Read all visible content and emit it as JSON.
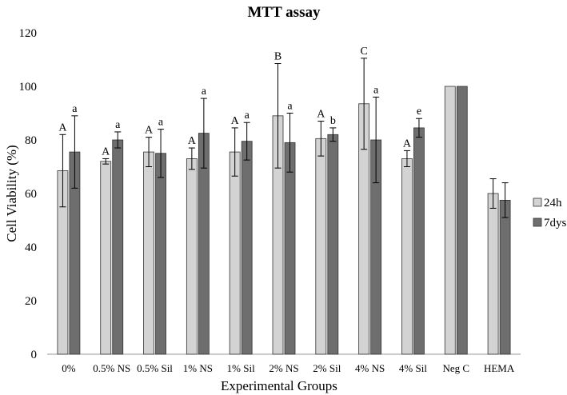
{
  "chart_data": {
    "type": "bar",
    "title": "MTT assay",
    "xlabel": "Experimental Groups",
    "ylabel": "Cell Viability (%)",
    "ylim": [
      0,
      120
    ],
    "yticks": [
      0,
      20,
      40,
      60,
      80,
      100,
      120
    ],
    "grid": false,
    "legend_position": "right",
    "categories": [
      "0%",
      "0.5% NS",
      "0.5% Sil",
      "1% NS",
      "1% Sil",
      "2% NS",
      "2% Sil",
      "4% NS",
      "4% Sil",
      "Neg C",
      "HEMA"
    ],
    "series": [
      {
        "name": "24h",
        "color": "#d3d3d3",
        "values": [
          68.5,
          72,
          75.5,
          73,
          75.5,
          89,
          80.5,
          93.5,
          73,
          100,
          60
        ],
        "errors": [
          13.5,
          1,
          5.5,
          4,
          9,
          19.5,
          6.5,
          17,
          3,
          0,
          5.5
        ],
        "labels": [
          "A",
          "A",
          "A",
          "A",
          "A",
          "B",
          "A",
          "C",
          "A",
          "",
          ""
        ]
      },
      {
        "name": "7dys",
        "color": "#6e6e6e",
        "values": [
          75.5,
          80,
          75,
          82.5,
          79.5,
          79,
          82,
          80,
          84.5,
          100,
          57.5
        ],
        "errors": [
          13.5,
          3,
          9,
          13,
          7,
          11,
          2.5,
          16,
          3.5,
          0,
          6.5
        ],
        "labels": [
          "a",
          "a",
          "a",
          "a",
          "a",
          "a",
          "b",
          "a",
          "e",
          "",
          ""
        ]
      }
    ]
  }
}
